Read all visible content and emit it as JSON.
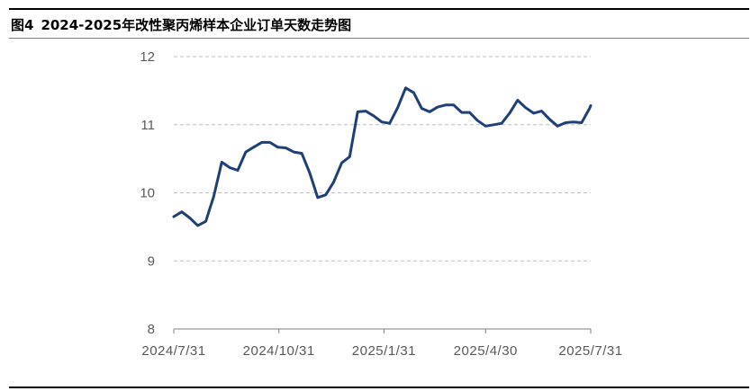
{
  "figure": {
    "number": "图4",
    "title": "2024-2025年改性聚丙烯样本企业订单天数走势图"
  },
  "chart_data": {
    "type": "line",
    "title": "2024-2025年改性聚丙烯样本企业订单天数走势图",
    "xlabel": "",
    "ylabel": "",
    "ylim": [
      8,
      12
    ],
    "yticks": [
      "8",
      "9",
      "10",
      "11",
      "12"
    ],
    "xticks": [
      "2024/7/31",
      "2024/10/31",
      "2025/1/31",
      "2025/4/30",
      "2025/7/31"
    ],
    "grid": "horizontal dashed",
    "line_color": "#1f3f77",
    "series": [
      {
        "name": "",
        "x": [
          "2024/7/31",
          "2024/8/7",
          "2024/8/14",
          "2024/8/21",
          "2024/8/28",
          "2024/9/4",
          "2024/9/11",
          "2024/9/18",
          "2024/9/25",
          "2024/10/2",
          "2024/10/9",
          "2024/10/16",
          "2024/10/23",
          "2024/10/30",
          "2024/11/6",
          "2024/11/13",
          "2024/11/20",
          "2024/11/27",
          "2024/12/4",
          "2024/12/11",
          "2024/12/18",
          "2024/12/25",
          "2025/1/1",
          "2025/1/8",
          "2025/1/15",
          "2025/1/22",
          "2025/1/29",
          "2025/2/5",
          "2025/2/12",
          "2025/2/19",
          "2025/2/26",
          "2025/3/5",
          "2025/3/12",
          "2025/3/19",
          "2025/3/26",
          "2025/4/2",
          "2025/4/9",
          "2025/4/16",
          "2025/4/23",
          "2025/4/30",
          "2025/5/7",
          "2025/5/14",
          "2025/5/21",
          "2025/5/28",
          "2025/6/4",
          "2025/6/11",
          "2025/6/18",
          "2025/6/25",
          "2025/7/2",
          "2025/7/9",
          "2025/7/16",
          "2025/7/23",
          "2025/7/30",
          "2025/8/6"
        ],
        "values": [
          9.65,
          9.72,
          9.63,
          9.52,
          9.58,
          9.95,
          10.45,
          10.37,
          10.33,
          10.6,
          10.67,
          10.74,
          10.74,
          10.67,
          10.66,
          10.6,
          10.58,
          10.29,
          9.93,
          9.97,
          10.16,
          10.44,
          10.53,
          11.19,
          11.2,
          11.13,
          11.04,
          11.02,
          11.25,
          11.54,
          11.47,
          11.24,
          11.19,
          11.26,
          11.29,
          11.29,
          11.18,
          11.18,
          11.06,
          10.98,
          11.0,
          11.02,
          11.17,
          11.36,
          11.25,
          11.17,
          11.2,
          11.08,
          10.98,
          11.03,
          11.04,
          11.03,
          11.24,
          11.28
        ]
      }
    ]
  }
}
